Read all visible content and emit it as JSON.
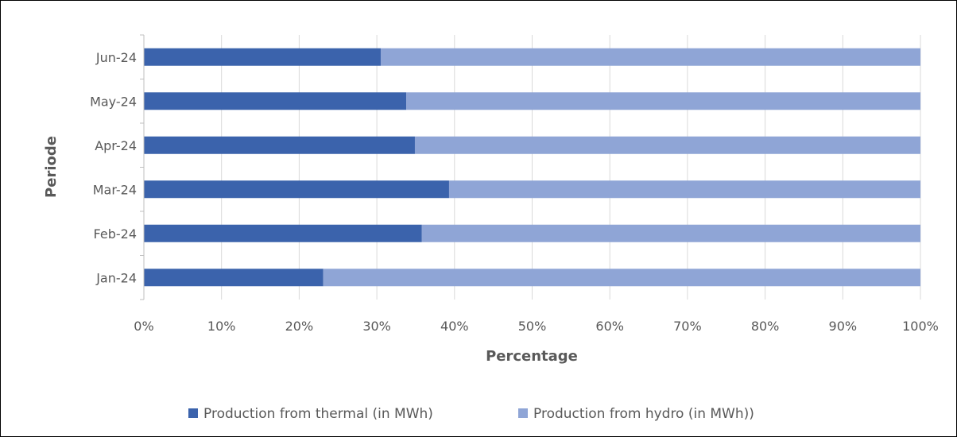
{
  "chart_data": {
    "type": "bar",
    "orientation": "horizontal",
    "stacked": "100%",
    "categories": [
      "Jan-24",
      "Feb-24",
      "Mar-24",
      "Apr-24",
      "May-24",
      "Jun-24"
    ],
    "series": [
      {
        "name": "Production from thermal (in MWh)",
        "color": "#3B63AC",
        "values": [
          23.1,
          35.8,
          39.3,
          34.9,
          33.8,
          30.5
        ]
      },
      {
        "name": "Production from hydro (in MWh))",
        "color": "#8FA5D6",
        "values": [
          76.9,
          64.2,
          60.7,
          65.1,
          66.2,
          69.5
        ]
      }
    ],
    "x_ticks": [
      "0%",
      "10%",
      "20%",
      "30%",
      "40%",
      "50%",
      "60%",
      "70%",
      "80%",
      "90%",
      "100%"
    ],
    "xlabel": "Percentage",
    "ylabel": "Periode",
    "xlim": [
      0,
      100
    ],
    "grid": "vertical",
    "legend_position": "bottom",
    "colors": {
      "gridline": "#D9D9D9",
      "axis": "#BFBFBF",
      "text": "#595959"
    }
  }
}
